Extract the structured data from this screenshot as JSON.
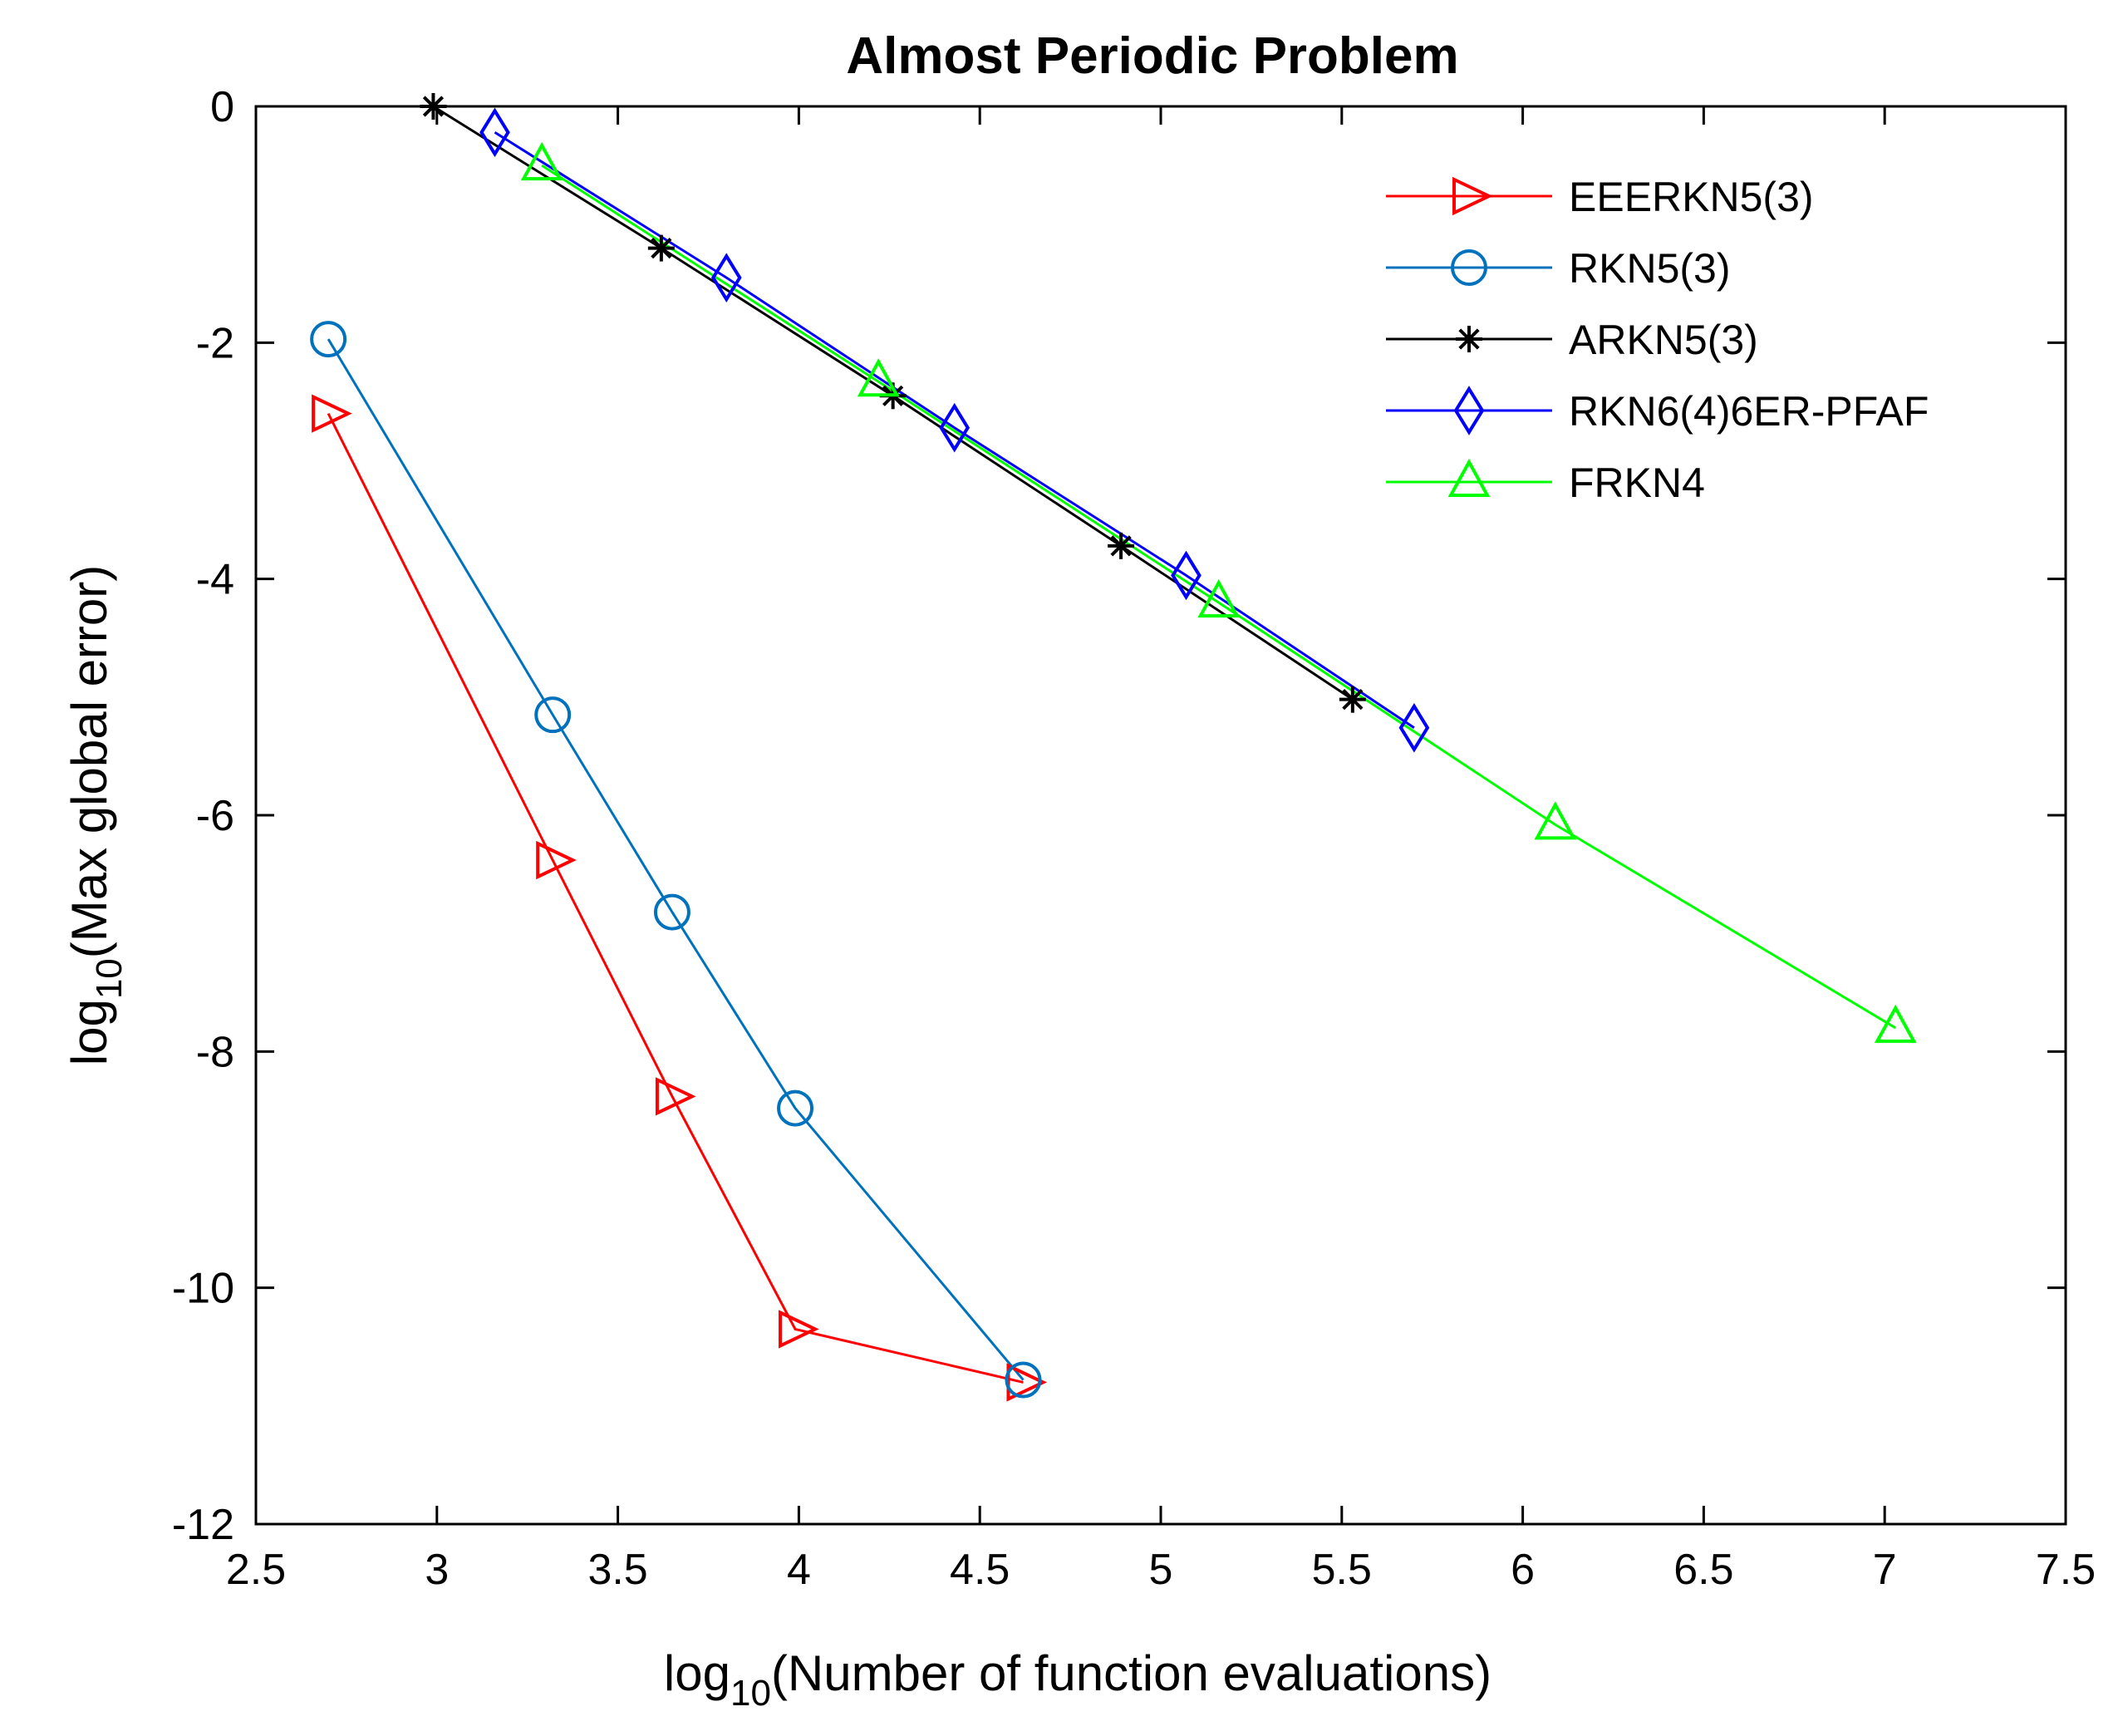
{
  "chart_data": {
    "type": "line",
    "title": "Almost Periodic Problem",
    "xlabel": {
      "prefix": "log",
      "sub": "10",
      "text": "(Number of function evaluations)"
    },
    "ylabel": {
      "prefix": "log",
      "sub": "10",
      "text": "(Max global error)"
    },
    "xlim": [
      2.5,
      7.5
    ],
    "ylim": [
      -12,
      0
    ],
    "xticks": [
      2.5,
      3,
      3.5,
      4,
      4.5,
      5,
      5.5,
      6,
      6.5,
      7,
      7.5
    ],
    "xtick_labels": [
      "2.5",
      "3",
      "3.5",
      "4",
      "4.5",
      "5",
      "5.5",
      "6",
      "6.5",
      "7",
      "7.5"
    ],
    "yticks": [
      0,
      -2,
      -4,
      -6,
      -8,
      -10,
      -12
    ],
    "ytick_labels": [
      "0",
      "-2",
      "-4",
      "-6",
      "-8",
      "-10",
      "-12"
    ],
    "grid": false,
    "legend_position": "top-right",
    "series": [
      {
        "name": "EEERKN5(3)",
        "color": "#ff0000",
        "marker": "triangle-right",
        "x": [
          2.7,
          3.32,
          3.65,
          3.99,
          4.62
        ],
        "y": [
          -2.6,
          -6.38,
          -8.38,
          -10.35,
          -10.8
        ]
      },
      {
        "name": "RKN5(3)",
        "color": "#0072bd",
        "marker": "circle",
        "x": [
          2.7,
          3.32,
          3.65,
          3.99,
          4.62
        ],
        "y": [
          -1.97,
          -5.15,
          -6.82,
          -8.48,
          -10.78
        ]
      },
      {
        "name": "ARKN5(3)",
        "color": "#000000",
        "marker": "asterisk",
        "x": [
          2.99,
          3.62,
          4.26,
          4.89,
          5.53
        ],
        "y": [
          0.0,
          -1.2,
          -2.45,
          -3.72,
          -5.02
        ]
      },
      {
        "name": "RKN6(4)6ER-PFAF",
        "color": "#0000ff",
        "marker": "diamond",
        "x": [
          3.16,
          3.8,
          4.43,
          5.07,
          5.7
        ],
        "y": [
          -0.22,
          -1.45,
          -2.72,
          -3.97,
          -5.26
        ]
      },
      {
        "name": "FRKN4",
        "color": "#00ff00",
        "marker": "triangle-up",
        "x": [
          3.29,
          4.22,
          5.16,
          6.09,
          7.03
        ],
        "y": [
          -0.5,
          -2.33,
          -4.2,
          -6.08,
          -7.8
        ]
      }
    ]
  }
}
